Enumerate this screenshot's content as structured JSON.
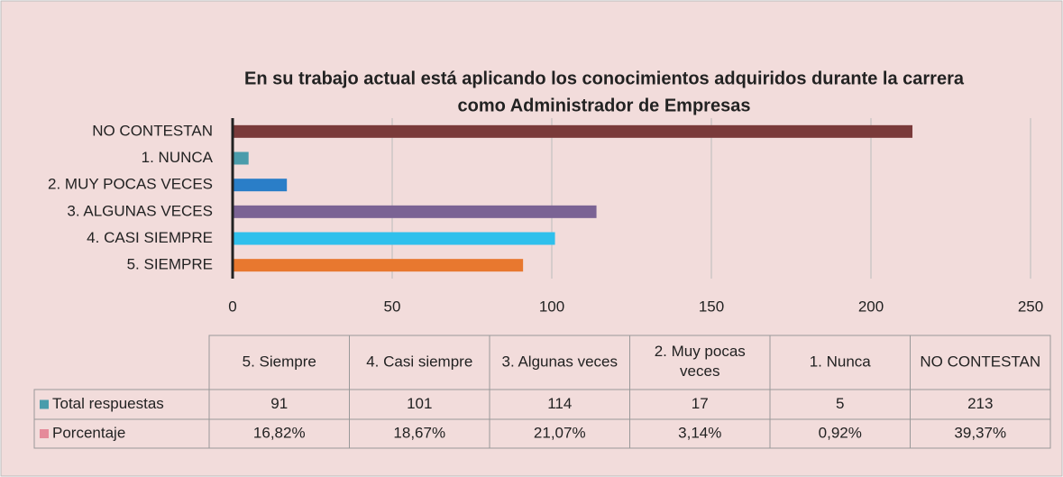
{
  "chart_data": {
    "type": "bar",
    "orientation": "horizontal",
    "title": [
      "En su trabajo actual está aplicando los conocimientos adquiridos durante la carrera",
      "como Administrador de Empresas"
    ],
    "categories": [
      "5. SIEMPRE",
      "4. CASI SIEMPRE",
      "3. ALGUNAS VECES",
      "2. MUY POCAS VECES",
      "1. NUNCA",
      "NO CONTESTAN"
    ],
    "colors": [
      "#e8782f",
      "#2fc0ec",
      "#7b6394",
      "#2a7ec8",
      "#4a9cab",
      "#7a3a3a"
    ],
    "xlim": [
      0,
      250
    ],
    "xticks": [
      0,
      50,
      100,
      150,
      200,
      250
    ],
    "grid": true,
    "table_categories": [
      "5. Siempre",
      "4. Casi siempre",
      "3. Algunas veces",
      "2. Muy pocas veces",
      "1. Nunca",
      "NO CONTESTAN"
    ],
    "series": [
      {
        "name": "Total respuestas",
        "color": "#4a9cab",
        "values": [
          91,
          101,
          114,
          17,
          5,
          213
        ]
      },
      {
        "name": "Porcentaje",
        "color": "#e58a9a",
        "values": [
          16.82,
          18.67,
          21.07,
          3.14,
          0.92,
          39.37
        ],
        "value_labels": [
          "16,82%",
          "18,67%",
          "21,07%",
          "3,14%",
          "0,92%",
          "39,37%"
        ]
      }
    ]
  }
}
